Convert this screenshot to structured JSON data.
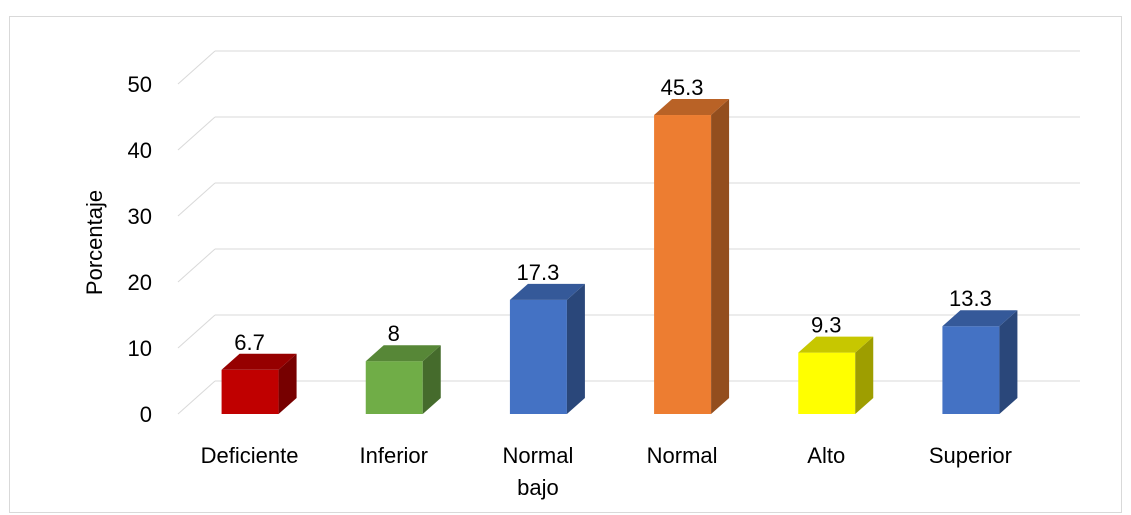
{
  "chart_data": {
    "type": "bar",
    "style": "3d-column",
    "categories": [
      "Deficiente",
      "Inferior",
      "Normal bajo",
      "Normal",
      "Alto",
      "Superior"
    ],
    "category_lines": [
      [
        "Deficiente"
      ],
      [
        "Inferior"
      ],
      [
        "Normal",
        "bajo"
      ],
      [
        "Normal"
      ],
      [
        "Alto"
      ],
      [
        "Superior"
      ]
    ],
    "values": [
      6.7,
      8,
      17.3,
      45.3,
      9.3,
      13.3
    ],
    "data_labels": [
      "6.7",
      "8",
      "17.3",
      "45.3",
      "9.3",
      "13.3"
    ],
    "colors": [
      "#c00000",
      "#70ad47",
      "#4472c4",
      "#ed7d31",
      "#ffff00",
      "#4472c4"
    ],
    "title": "",
    "xlabel": "",
    "ylabel": "Porcentaje",
    "ylim": [
      0,
      50
    ],
    "yticks": [
      0,
      10,
      20,
      30,
      40,
      50
    ],
    "ytick_labels": [
      "0",
      "10",
      "20",
      "30",
      "40",
      "50"
    ],
    "grid": true,
    "legend": "none"
  }
}
